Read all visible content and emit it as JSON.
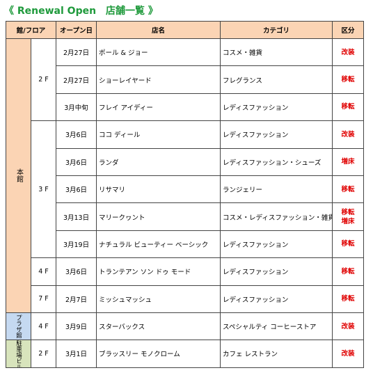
{
  "header": {
    "title": "《 Renewal Open　店舗一覧 》"
  },
  "table": {
    "columns": [
      "館/フロア",
      "オープン日",
      "店名",
      "カテゴリ",
      "区分"
    ],
    "buildings": [
      {
        "name": "本館",
        "floors": [
          {
            "floor": "2 F",
            "shops": [
              {
                "date": "2月27日",
                "name": "ポール & ジョー",
                "category": "コスメ・雑貨",
                "kubun": [
                  "改装"
                ]
              },
              {
                "date": "2月27日",
                "name": "ショーレイヤード",
                "category": "フレグランス",
                "kubun": [
                  "移転"
                ]
              },
              {
                "date": "3月中旬",
                "name": "フレイ アイディー",
                "category": "レディスファッション",
                "kubun": [
                  "移転"
                ]
              }
            ]
          },
          {
            "floor": "3 F",
            "shops": [
              {
                "date": "3月6日",
                "name": "ココ ディール",
                "category": "レディスファッション",
                "kubun": [
                  "改装"
                ]
              },
              {
                "date": "3月6日",
                "name": "ランダ",
                "category": "レディスファッション・シューズ",
                "kubun": [
                  "増床"
                ]
              },
              {
                "date": "3月6日",
                "name": "リサマリ",
                "category": "ランジェリー",
                "kubun": [
                  "移転"
                ]
              },
              {
                "date": "3月13日",
                "name": "マリークヮント",
                "category": "コスメ・レディスファッション・雑貨",
                "kubun": [
                  "移転",
                  "増床"
                ]
              },
              {
                "date": "3月19日",
                "name": "ナチュラル ビューティー ベーシック",
                "category": "レディスファッション",
                "kubun": [
                  "移転"
                ]
              }
            ]
          },
          {
            "floor": "4 F",
            "shops": [
              {
                "date": "3月6日",
                "name": "トランテアン ソン ドゥ モード",
                "category": "レディスファッション",
                "kubun": [
                  "移転"
                ]
              }
            ]
          },
          {
            "floor": "7 F",
            "shops": [
              {
                "date": "2月7日",
                "name": "ミッシュマッシュ",
                "category": "レディスファッション",
                "kubun": [
                  "移転"
                ]
              }
            ]
          }
        ]
      },
      {
        "name": "プラザ館",
        "floors": [
          {
            "floor": "4 F",
            "shops": [
              {
                "date": "3月9日",
                "name": "スターバックス",
                "category": "スペシャルティ コーヒーストア",
                "kubun": [
                  "改装"
                ]
              }
            ]
          }
        ]
      },
      {
        "name": "駐車場ビル",
        "floors": [
          {
            "floor": "2 F",
            "shops": [
              {
                "date": "3月1日",
                "name": "ブラッスリー モノクローム",
                "category": "カフェ レストラン",
                "kubun": [
                  "改装"
                ]
              }
            ]
          }
        ]
      }
    ]
  }
}
